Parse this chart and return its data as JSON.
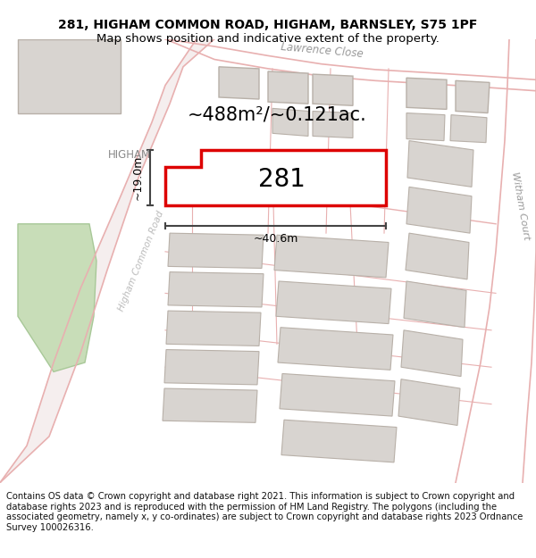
{
  "title_line1": "281, HIGHAM COMMON ROAD, HIGHAM, BARNSLEY, S75 1PF",
  "title_line2": "Map shows position and indicative extent of the property.",
  "footer_text": "Contains OS data © Crown copyright and database right 2021. This information is subject to Crown copyright and database rights 2023 and is reproduced with the permission of HM Land Registry. The polygons (including the associated geometry, namely x, y co-ordinates) are subject to Crown copyright and database rights 2023 Ordnance Survey 100026316.",
  "property_label": "281",
  "area_label": "~488m²/~0.121ac.",
  "dim_width": "~40.6m",
  "dim_height": "~19.0m",
  "map_bg": "#ffffff",
  "road_fill": "#f5eeee",
  "road_line": "#e8b0b0",
  "building_fill": "#d8d4d0",
  "building_edge": "#b8b0a8",
  "green_fill": "#c8ddb8",
  "green_edge": "#a8c898",
  "highlight_color": "#dd0000",
  "highlight_fill": "#ffffff",
  "dim_color": "#444444",
  "label_color": "#999999",
  "text_color": "#000000",
  "title_fontsize": 10,
  "footer_fontsize": 7.2,
  "area_fontsize": 15,
  "prop_num_fontsize": 22,
  "dim_fontsize": 9
}
